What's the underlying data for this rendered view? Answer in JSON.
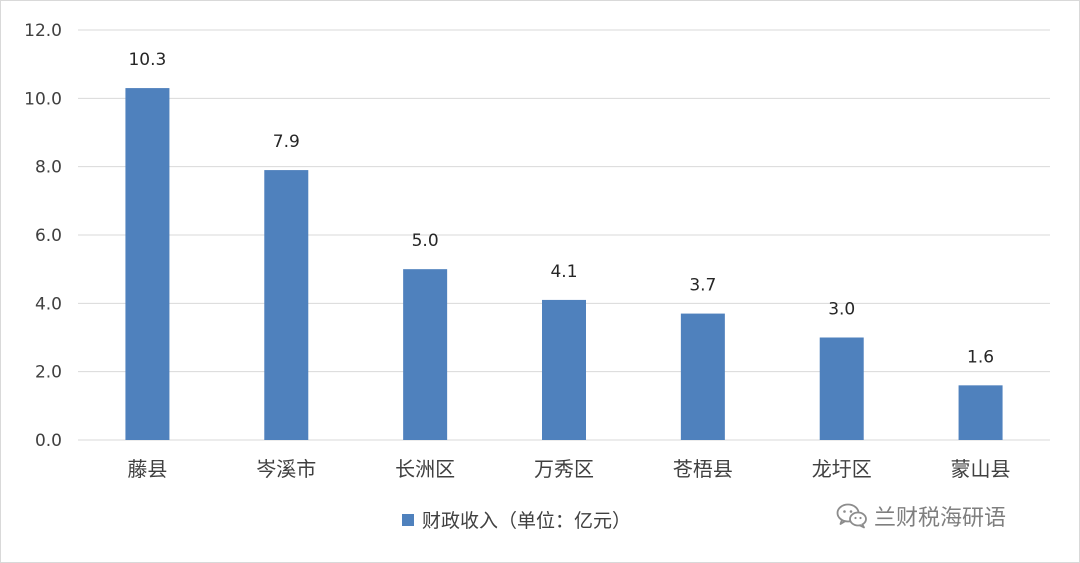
{
  "chart_data": {
    "type": "bar",
    "categories": [
      "藤县",
      "岑溪市",
      "长洲区",
      "万秀区",
      "苍梧县",
      "龙圩区",
      "蒙山县"
    ],
    "series": [
      {
        "name": "财政收入（单位：亿元）",
        "values": [
          10.3,
          7.9,
          5.0,
          4.1,
          3.7,
          3.0,
          1.6
        ],
        "color": "#4f81bd"
      }
    ],
    "data_labels": [
      "10.3",
      "7.9",
      "5.0",
      "4.1",
      "3.7",
      "3.0",
      "1.6"
    ],
    "y_ticks": [
      "0.0",
      "2.0",
      "4.0",
      "6.0",
      "8.0",
      "10.0",
      "12.0"
    ],
    "ylim": [
      0,
      12
    ],
    "grid": true,
    "legend_position": "bottom-center",
    "gridline_color": "#d9d9d9"
  },
  "watermark": {
    "text": "兰财税海研语",
    "icon": "wechat-icon"
  }
}
